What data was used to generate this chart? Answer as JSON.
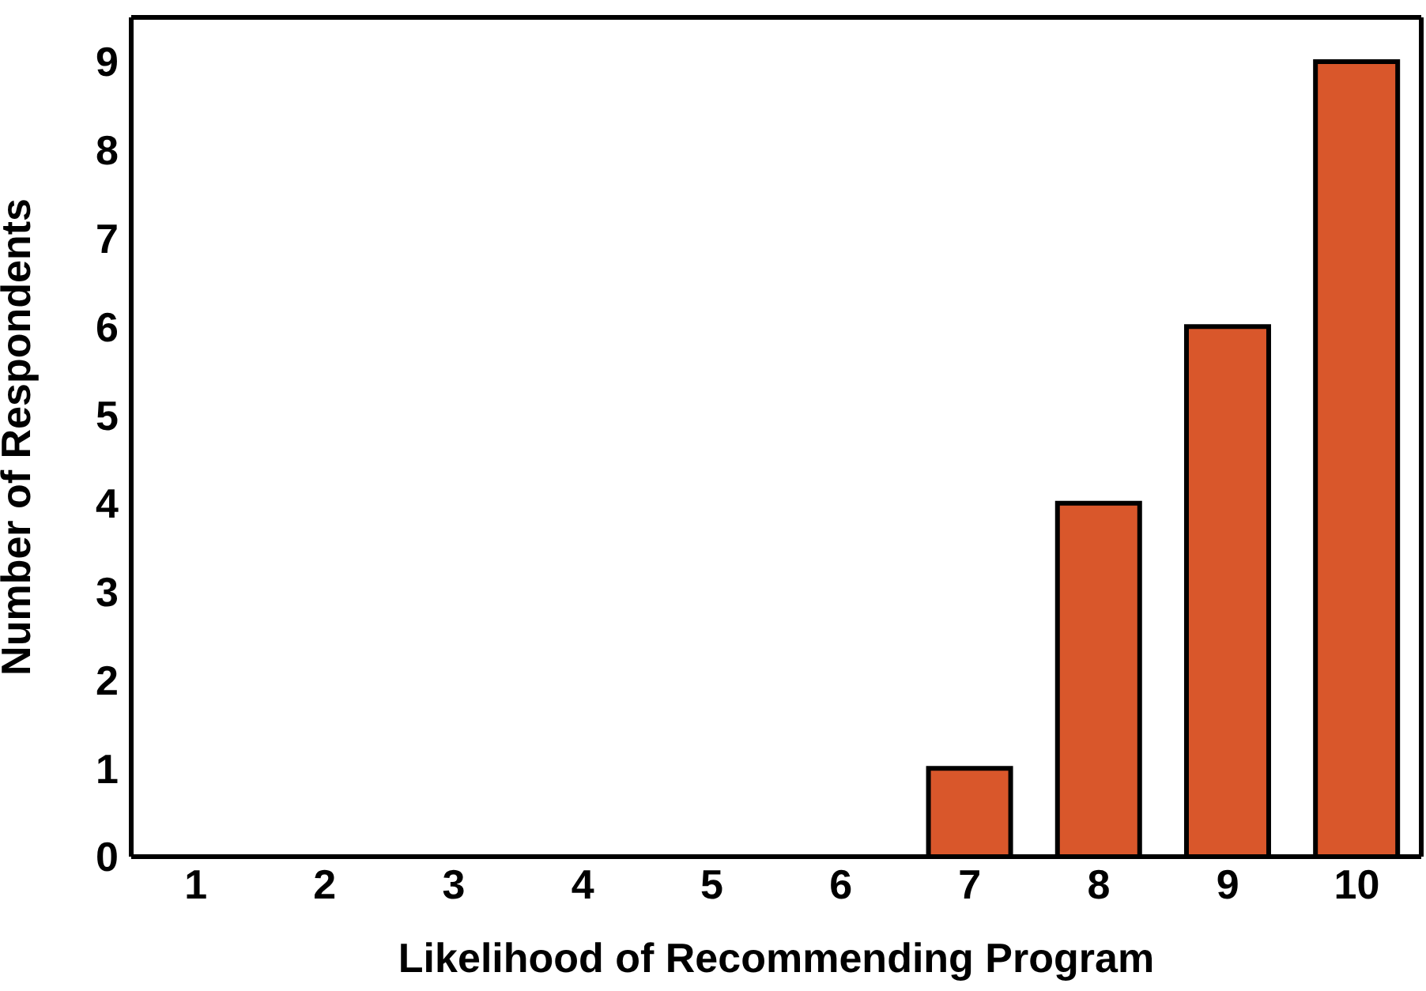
{
  "chart_data": {
    "type": "bar",
    "xlabel": "Likelihood of Recommending Program",
    "ylabel": "Number of Respondents",
    "categories": [
      "1",
      "2",
      "3",
      "4",
      "5",
      "6",
      "7",
      "8",
      "9",
      "10"
    ],
    "values": [
      0,
      0,
      0,
      0,
      0,
      0,
      1,
      4,
      6,
      9
    ],
    "color": "#d9572b",
    "ylim": [
      0,
      9.5
    ],
    "yticks": [
      0,
      1,
      2,
      3,
      4,
      5,
      6,
      7,
      8,
      9
    ],
    "grid": false
  }
}
